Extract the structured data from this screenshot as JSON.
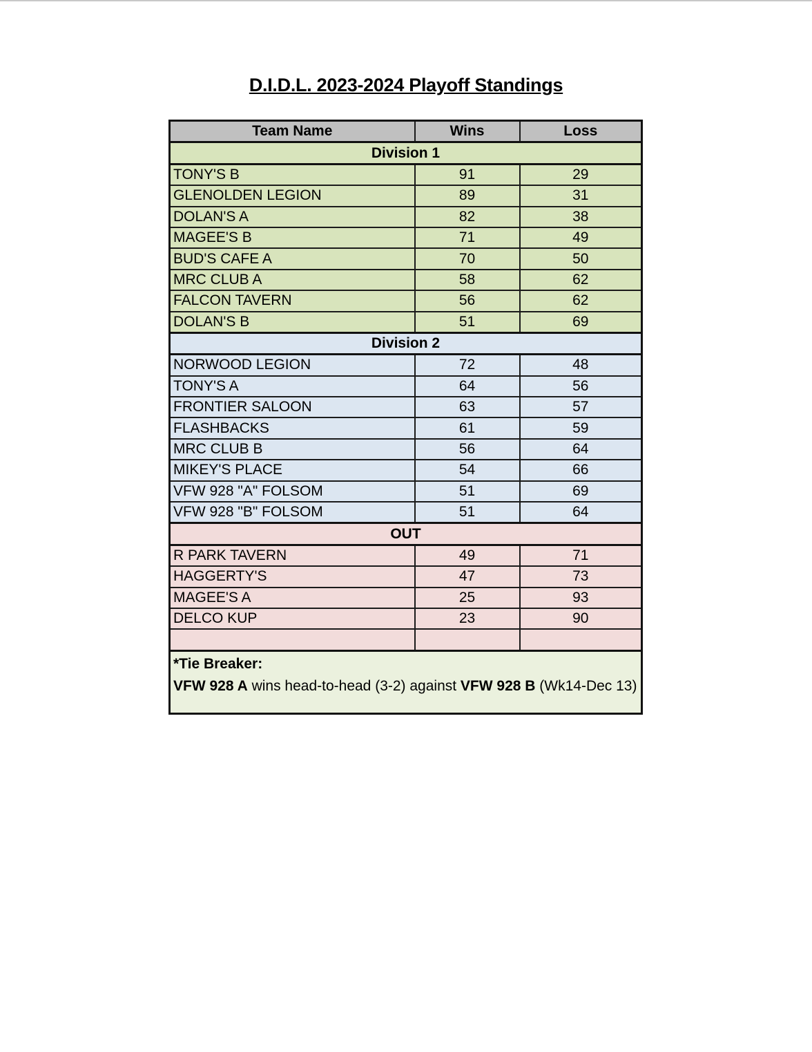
{
  "title": "D.I.D.L. 2023-2024 Playoff Standings",
  "headers": [
    "Team Name",
    "Wins",
    "Loss"
  ],
  "colors": {
    "header": "#c0c0c0",
    "division1": "#d8e4bc",
    "division2": "#dce6f1",
    "out": "#f2dcdb",
    "tie_breaker": "#ebf1de"
  },
  "sections": [
    {
      "label": "Division 1",
      "rows": [
        {
          "team": "TONY'S B",
          "wins": "91",
          "loss": "29"
        },
        {
          "team": "GLENOLDEN LEGION",
          "wins": "89",
          "loss": "31"
        },
        {
          "team": "DOLAN'S A",
          "wins": "82",
          "loss": "38"
        },
        {
          "team": "MAGEE'S B",
          "wins": "71",
          "loss": "49"
        },
        {
          "team": "BUD'S CAFE A",
          "wins": "70",
          "loss": "50"
        },
        {
          "team": "MRC CLUB A",
          "wins": "58",
          "loss": "62"
        },
        {
          "team": "FALCON TAVERN",
          "wins": "56",
          "loss": "62"
        },
        {
          "team": "DOLAN'S B",
          "wins": "51",
          "loss": "69"
        }
      ]
    },
    {
      "label": "Division 2",
      "rows": [
        {
          "team": "NORWOOD LEGION",
          "wins": "72",
          "loss": "48"
        },
        {
          "team": "TONY'S A",
          "wins": "64",
          "loss": "56"
        },
        {
          "team": "FRONTIER SALOON",
          "wins": "63",
          "loss": "57"
        },
        {
          "team": "FLASHBACKS",
          "wins": "61",
          "loss": "59"
        },
        {
          "team": "MRC CLUB B",
          "wins": "56",
          "loss": "64"
        },
        {
          "team": "MIKEY'S PLACE",
          "wins": "54",
          "loss": "66"
        },
        {
          "team": "VFW 928 \"A\" FOLSOM",
          "wins": "51",
          "loss": "69"
        },
        {
          "team": "VFW 928 \"B\" FOLSOM",
          "wins": "51",
          "loss": "64"
        }
      ]
    },
    {
      "label": "OUT",
      "rows": [
        {
          "team": "R PARK TAVERN",
          "wins": "49",
          "loss": "71"
        },
        {
          "team": "HAGGERTY'S",
          "wins": "47",
          "loss": "73"
        },
        {
          "team": "MAGEE'S A",
          "wins": "25",
          "loss": "93"
        },
        {
          "team": "DELCO KUP",
          "wins": "23",
          "loss": "90"
        },
        {
          "team": "",
          "wins": "",
          "loss": ""
        }
      ]
    }
  ],
  "tie_breaker": {
    "heading": "*Tie Breaker:",
    "team_a": "VFW 928 A",
    "text1": " wins head-to-head (3-2) against ",
    "team_b": "VFW 928 B",
    "text2": " (Wk14-Dec 13)"
  }
}
